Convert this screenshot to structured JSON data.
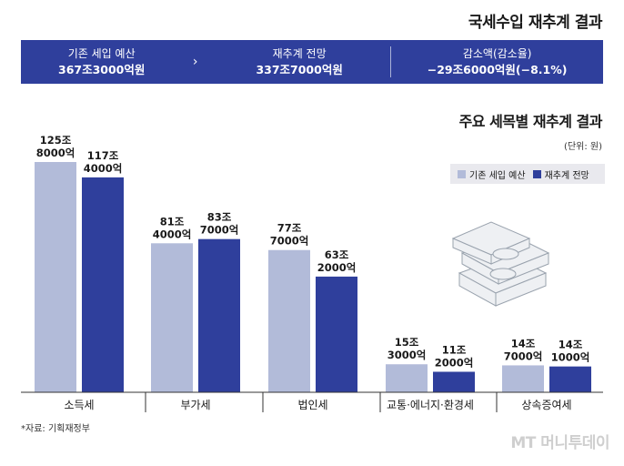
{
  "header": {
    "title": "국세수입 재추계 결과"
  },
  "summary": {
    "original_label": "기존 세입 예산",
    "original_value": "367조3000억원",
    "arrow": "›",
    "revised_label": "재추계 전망",
    "revised_value": "337조7000억원",
    "decrease_label": "감소액(감소율)",
    "decrease_value": "−29조6000억원(−8.1%)"
  },
  "chart_header": {
    "title": "주요 세목별 재추계 결과",
    "unit": "(단위: 원)"
  },
  "legend": {
    "original": "기존 세입 예산",
    "revised": "재추계 전망"
  },
  "chart_data": {
    "type": "bar",
    "title": "주요 세목별 재추계 결과",
    "unit": "억원",
    "categories": [
      "소득세",
      "부가세",
      "법인세",
      "교통·에너지·환경세",
      "상속증여세"
    ],
    "series": [
      {
        "name": "기존 세입 예산",
        "values": [
          1258000,
          814000,
          777000,
          153000,
          147000
        ],
        "labels": [
          [
            "125조",
            "8000억"
          ],
          [
            "81조",
            "4000억"
          ],
          [
            "77조",
            "7000억"
          ],
          [
            "15조",
            "3000억"
          ],
          [
            "14조",
            "7000억"
          ]
        ]
      },
      {
        "name": "재추계 전망",
        "values": [
          1174000,
          837000,
          632000,
          112000,
          141000
        ],
        "labels": [
          [
            "117조",
            "4000억"
          ],
          [
            "83조",
            "7000억"
          ],
          [
            "63조",
            "2000억"
          ],
          [
            "11조",
            "2000억"
          ],
          [
            "14조",
            "1000억"
          ]
        ]
      }
    ],
    "colors": {
      "original": "#b2bbd9",
      "revised": "#2f3f9c",
      "icon_fill": "#eef0f3",
      "icon_stroke": "#9aa3ae"
    }
  },
  "footer": {
    "source": "*자료: 기획재정부",
    "watermark": "MT 머니투데이"
  }
}
